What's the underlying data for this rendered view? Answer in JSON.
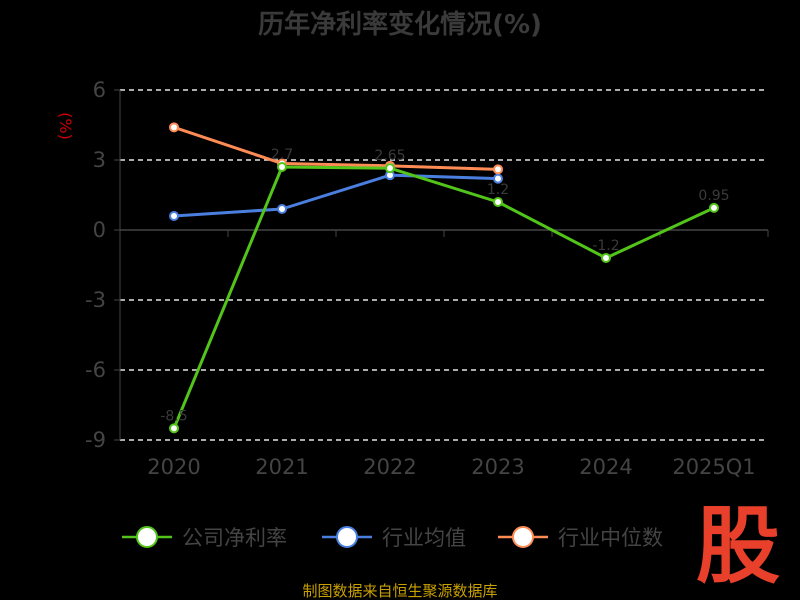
{
  "chart_data": {
    "type": "line",
    "title": "历年净利率变化情况(%)",
    "ylabel": "(%)",
    "ylim": [
      -9,
      6
    ],
    "yticks": [
      6,
      3,
      0,
      -3,
      -6,
      -9
    ],
    "categories": [
      "2020",
      "2021",
      "2022",
      "2023",
      "2024",
      "2025Q1"
    ],
    "grid": true,
    "legend_position": "bottom",
    "series": [
      {
        "name": "公司净利率",
        "color": "#52c41a",
        "values": [
          -8.5,
          2.7,
          2.65,
          1.2,
          -1.2,
          0.95
        ]
      },
      {
        "name": "行业均值",
        "color": "#4a7fe0",
        "values": [
          0.6,
          0.9,
          2.35,
          2.2,
          null,
          null
        ]
      },
      {
        "name": "行业中位数",
        "color": "#ff8c55",
        "values": [
          4.4,
          2.85,
          2.75,
          2.6,
          null,
          null
        ]
      }
    ]
  },
  "footer": {
    "source": "制图数据来自恒生聚源数据库"
  },
  "logo": {
    "text": "股"
  }
}
